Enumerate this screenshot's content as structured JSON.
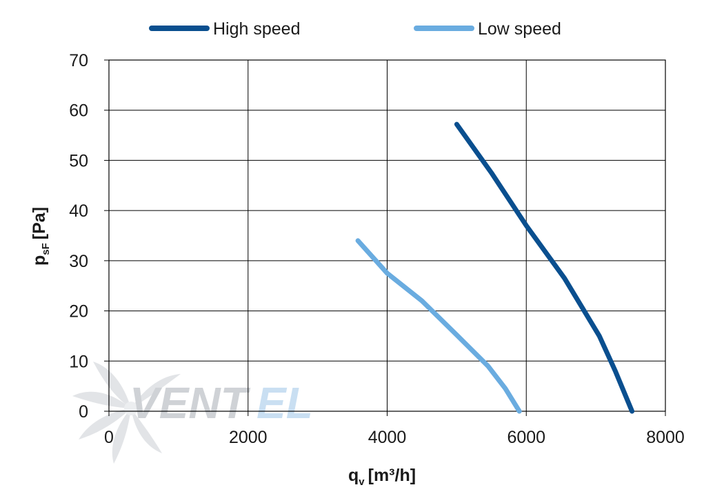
{
  "watermark": {
    "text_a": "VENT",
    "text_b": "EL",
    "color_a": "#cfd2d6",
    "color_b": "#c9dff2"
  },
  "chart_data": {
    "type": "line",
    "title": "",
    "xlabel": {
      "main": "q",
      "sub": "v",
      "unit": "[m³/h]"
    },
    "ylabel": {
      "main": "p",
      "sub": "sF",
      "unit": "[Pa]"
    },
    "xlim": [
      0,
      8000
    ],
    "ylim": [
      0,
      70
    ],
    "xticks": [
      0,
      2000,
      4000,
      6000,
      8000
    ],
    "yticks": [
      0,
      10,
      20,
      30,
      40,
      50,
      60,
      70
    ],
    "grid": true,
    "legend_position": "top",
    "series": [
      {
        "name": "High speed",
        "color": "#0a4f8f",
        "points": [
          [
            5000,
            57.2
          ],
          [
            5500,
            47.5
          ],
          [
            6000,
            37
          ],
          [
            6550,
            26.5
          ],
          [
            7050,
            15
          ],
          [
            7280,
            8
          ],
          [
            7520,
            0
          ]
        ]
      },
      {
        "name": "Low speed",
        "color": "#6aace0",
        "points": [
          [
            3580,
            34
          ],
          [
            4000,
            27.5
          ],
          [
            4500,
            22
          ],
          [
            5000,
            15.2
          ],
          [
            5450,
            9
          ],
          [
            5700,
            4.5
          ],
          [
            5900,
            0
          ]
        ]
      }
    ]
  }
}
